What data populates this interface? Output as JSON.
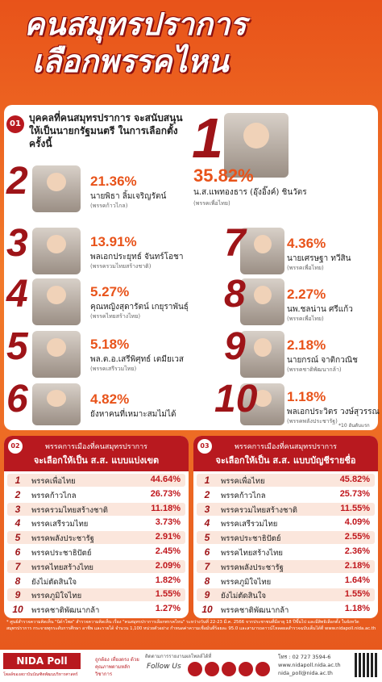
{
  "header": {
    "title_line1": "คนสมุทรปราการ",
    "title_line2": "เลือกพรรคไหน"
  },
  "section1": {
    "number": "01",
    "question": "บุคคลที่คนสมุทรปราการ จะสนับสนุนให้เป็นนายกรัฐมนตรี ในการเลือกตั้งครั้งนี้",
    "ranking": [
      {
        "rank": 1,
        "percent": "35.82%",
        "name": "น.ส.แพทองธาร (อุ๊งอิ๊งค์) ชินวัตร",
        "party": "(พรรคเพื่อไทย)"
      },
      {
        "rank": 2,
        "percent": "21.36%",
        "name": "นายพิธา ลิ้มเจริญรัตน์",
        "party": "(พรรคก้าวไกล)"
      },
      {
        "rank": 3,
        "percent": "13.91%",
        "name": "พลเอกประยุทธ์ จันทร์โอชา",
        "party": "(พรรครวมไทยสร้างชาติ)"
      },
      {
        "rank": 4,
        "percent": "5.27%",
        "name": "คุณหญิงสุดารัตน์ เกยุราพันธุ์",
        "party": "(พรรคไทยสร้างไทย)"
      },
      {
        "rank": 5,
        "percent": "5.18%",
        "name": "พล.ต.อ.เสรีพิศุทธ์ เตมียเวส",
        "party": "(พรรคเสรีรวมไทย)"
      },
      {
        "rank": 6,
        "percent": "4.82%",
        "name": "ยังหาคนที่เหมาะสมไม่ได้",
        "party": null
      },
      {
        "rank": 7,
        "percent": "4.36%",
        "name": "นายเศรษฐา ทวีสิน",
        "party": "(พรรคเพื่อไทย)"
      },
      {
        "rank": 8,
        "percent": "2.27%",
        "name": "นพ.ชลน่าน ศรีแก้ว",
        "party": "(พรรคเพื่อไทย)"
      },
      {
        "rank": 9,
        "percent": "2.18%",
        "name": "นายกรณ์ จาติกวณิช",
        "party": "(พรรคชาติพัฒนากล้า)"
      },
      {
        "rank": 10,
        "percent": "1.18%",
        "name": "พลเอกประวิตร วงษ์สุวรรณ",
        "party": "(พรรคพลังประชารัฐ)"
      }
    ],
    "note": "*10 อันดับแรก"
  },
  "section2": {
    "number": "02",
    "title_line1": "พรรคการเมืองที่คนสมุทรปราการ",
    "title_line2": "จะเลือกให้เป็น ส.ส. แบบแบ่งเขต",
    "rows": [
      {
        "rank": 1,
        "party": "พรรคเพื่อไทย",
        "percent": "44.64%"
      },
      {
        "rank": 2,
        "party": "พรรคก้าวไกล",
        "percent": "26.73%"
      },
      {
        "rank": 3,
        "party": "พรรครวมไทยสร้างชาติ",
        "percent": "11.18%"
      },
      {
        "rank": 4,
        "party": "พรรคเสรีรวมไทย",
        "percent": "3.73%"
      },
      {
        "rank": 5,
        "party": "พรรคพลังประชารัฐ",
        "percent": "2.91%"
      },
      {
        "rank": 6,
        "party": "พรรคประชาธิปัตย์",
        "percent": "2.45%"
      },
      {
        "rank": 7,
        "party": "พรรคไทยสร้างไทย",
        "percent": "2.09%"
      },
      {
        "rank": 8,
        "party": "ยังไม่ตัดสินใจ",
        "percent": "1.82%"
      },
      {
        "rank": 9,
        "party": "พรรคภูมิใจไทย",
        "percent": "1.55%"
      },
      {
        "rank": 10,
        "party": "พรรคชาติพัฒนากล้า",
        "percent": "1.27%"
      }
    ]
  },
  "section3": {
    "number": "03",
    "title_line1": "พรรคการเมืองที่คนสมุทรปราการ",
    "title_line2": "จะเลือกให้เป็น ส.ส. แบบบัญชีรายชื่อ",
    "rows": [
      {
        "rank": 1,
        "party": "พรรคเพื่อไทย",
        "percent": "45.82%"
      },
      {
        "rank": 2,
        "party": "พรรคก้าวไกล",
        "percent": "25.73%"
      },
      {
        "rank": 3,
        "party": "พรรครวมไทยสร้างชาติ",
        "percent": "11.55%"
      },
      {
        "rank": 4,
        "party": "พรรคเสรีรวมไทย",
        "percent": "4.09%"
      },
      {
        "rank": 5,
        "party": "พรรคประชาธิปัตย์",
        "percent": "2.55%"
      },
      {
        "rank": 6,
        "party": "พรรคไทยสร้างไทย",
        "percent": "2.36%"
      },
      {
        "rank": 7,
        "party": "พรรคพลังประชารัฐ",
        "percent": "2.18%"
      },
      {
        "rank": 8,
        "party": "พรรคภูมิใจไทย",
        "percent": "1.64%"
      },
      {
        "rank": 9,
        "party": "ยังไม่ตัดสินใจ",
        "percent": "1.55%"
      },
      {
        "rank": 10,
        "party": "พรรคชาติพัฒนากล้า",
        "percent": "1.18%"
      }
    ]
  },
  "footer": {
    "note": "* ศูนย์สำรวจความคิดเห็น \"นิด้าโพล\" สำรวจความคิดเห็น เรื่อง \"คนสมุทรปราการเลือกพรรคไหน\" ระหว่างวันที่ 22-23 มี.ค. 2566 จากประชาชนที่มีอายุ 18 ปีขึ้นไป และมีสิทธิเลือกตั้ง ในจังหวัดสมุทรปราการ กระจายทุกระดับการศึกษา อาชีพ และรายได้ จำนวน 1,100 หน่วยตัวอย่าง กำหนดค่าความเชื่อมั่นที่ร้อยละ 95.0 และสามารถดาวน์โหลดผลสำรวจฉบับเต็มได้ที่",
    "url": "www.nidapoll.nida.ac.th",
    "logo": "NIDA Poll",
    "logo_tagline": "โพลล์ของสถาบันบัณฑิตพัฒนบริหารศาสตร์",
    "slogan": "ถูกต้อง เที่ยงตรง ด้วยคุณภาพตามหลักวิชาการ",
    "follow_caption": "ติดตามการรายงานผลโพลล์ได้ที่",
    "follow_label": "Follow Us",
    "phone": "โทร : 02 727 3594-6",
    "website": "www.nidapoll.nida.ac.th",
    "email": "nida_poll@nida.ac.th"
  }
}
